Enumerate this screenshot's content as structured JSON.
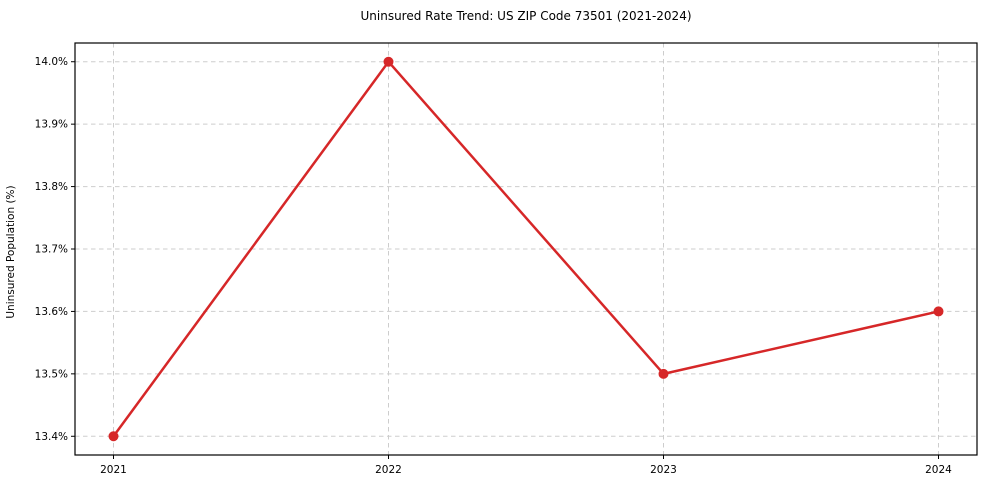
{
  "chart_data": {
    "type": "line",
    "title": "Uninsured Rate Trend: US ZIP Code 73501 (2021-2024)",
    "xlabel": "",
    "ylabel": "Uninsured Population (%)",
    "series": [
      {
        "name": "Uninsured Population (%)",
        "x": [
          2021,
          2022,
          2023,
          2024
        ],
        "values": [
          13.4,
          14.0,
          13.5,
          13.6
        ]
      }
    ],
    "x_tick_labels": [
      "2021",
      "2022",
      "2023",
      "2024"
    ],
    "x_tick_values": [
      2021,
      2022,
      2023,
      2024
    ],
    "y_tick_labels": [
      "13.4%",
      "13.5%",
      "13.6%",
      "13.7%",
      "13.8%",
      "13.9%",
      "14.0%"
    ],
    "y_tick_values": [
      13.4,
      13.5,
      13.6,
      13.7,
      13.8,
      13.9,
      14.0
    ],
    "xlim": [
      2020.86,
      2024.14
    ],
    "ylim": [
      13.37,
      14.03
    ],
    "grid": true,
    "legend": false,
    "line_color": "#d62728",
    "grid_color": "#cdcdcd",
    "axis_color": "#000000",
    "background_color": "#ffffff"
  }
}
